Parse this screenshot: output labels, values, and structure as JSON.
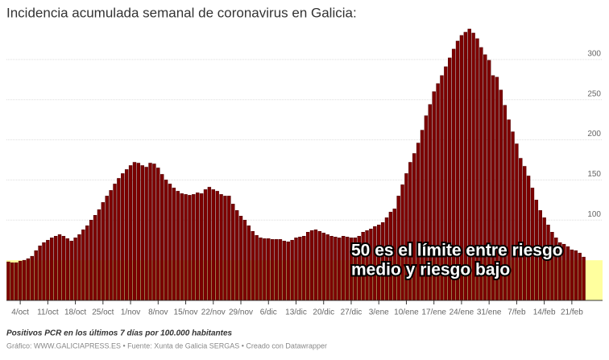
{
  "chart_data": {
    "type": "bar",
    "title": "Incidencia acumulada semanal de coronavirus en Galicia:",
    "subtitle": "Positivos PCR en los últimos 7 días por 100.000 habitantes",
    "source": "Gráfico: WWW.GALICIAPRESS.ES • Fuente: Xunta de Galicia SERGAS • Creado con Datawrapper",
    "annotation": [
      "50 es el límite entre riesgo",
      "medio y riesgo bajo"
    ],
    "color": "#7d0000",
    "band": {
      "from": 0,
      "to": 50,
      "color": "#ffff9e"
    },
    "ylim": [
      0,
      340
    ],
    "yticks": [
      100,
      150,
      200,
      250,
      300
    ],
    "grid": true,
    "categories": [
      null,
      null,
      null,
      "4/oct",
      null,
      null,
      null,
      null,
      null,
      null,
      "11/oct",
      null,
      null,
      null,
      null,
      null,
      null,
      "18/oct",
      null,
      null,
      null,
      null,
      null,
      null,
      "25/oct",
      null,
      null,
      null,
      null,
      null,
      null,
      "1/nov",
      null,
      null,
      null,
      null,
      null,
      null,
      "8/nov",
      null,
      null,
      null,
      null,
      null,
      null,
      "15/nov",
      null,
      null,
      null,
      null,
      null,
      null,
      "22/nov",
      null,
      null,
      null,
      null,
      null,
      null,
      "29/nov",
      null,
      null,
      null,
      null,
      null,
      null,
      "6/dic",
      null,
      null,
      null,
      null,
      null,
      null,
      "13/dic",
      null,
      null,
      null,
      null,
      null,
      null,
      "20/dic",
      null,
      null,
      null,
      null,
      null,
      null,
      "27/dic",
      null,
      null,
      null,
      null,
      null,
      null,
      "3/ene",
      null,
      null,
      null,
      null,
      null,
      null,
      "10/ene",
      null,
      null,
      null,
      null,
      null,
      null,
      "17/ene",
      null,
      null,
      null,
      null,
      null,
      null,
      "24/ene",
      null,
      null,
      null,
      null,
      null,
      null,
      "31/ene",
      null,
      null,
      null,
      null,
      null,
      null,
      "7/feb",
      null,
      null,
      null,
      null,
      null,
      null,
      "14/feb",
      null,
      null,
      null,
      null,
      null,
      null,
      "21/feb",
      null,
      null,
      null
    ],
    "values": [
      48,
      47,
      47,
      49,
      50,
      52,
      55,
      62,
      68,
      72,
      75,
      78,
      80,
      82,
      80,
      77,
      74,
      78,
      82,
      88,
      93,
      100,
      106,
      113,
      122,
      130,
      137,
      145,
      152,
      158,
      163,
      168,
      172,
      171,
      168,
      166,
      171,
      170,
      165,
      157,
      150,
      145,
      140,
      136,
      133,
      132,
      131,
      132,
      134,
      133,
      138,
      141,
      138,
      136,
      132,
      130,
      130,
      120,
      112,
      105,
      100,
      93,
      86,
      81,
      78,
      77,
      77,
      76,
      76,
      76,
      74,
      73,
      75,
      78,
      79,
      80,
      85,
      87,
      88,
      86,
      84,
      82,
      80,
      79,
      78,
      80,
      79,
      78,
      78,
      80,
      85,
      87,
      89,
      92,
      94,
      97,
      103,
      110,
      114,
      130,
      144,
      158,
      172,
      183,
      196,
      212,
      230,
      244,
      260,
      270,
      280,
      291,
      302,
      313,
      323,
      330,
      334,
      338,
      333,
      326,
      315,
      306,
      299,
      280,
      278,
      262,
      243,
      225,
      210,
      195,
      177,
      167,
      155,
      140,
      125,
      112,
      103,
      94,
      85,
      78,
      72,
      70,
      67,
      63,
      62,
      59,
      54
    ]
  }
}
